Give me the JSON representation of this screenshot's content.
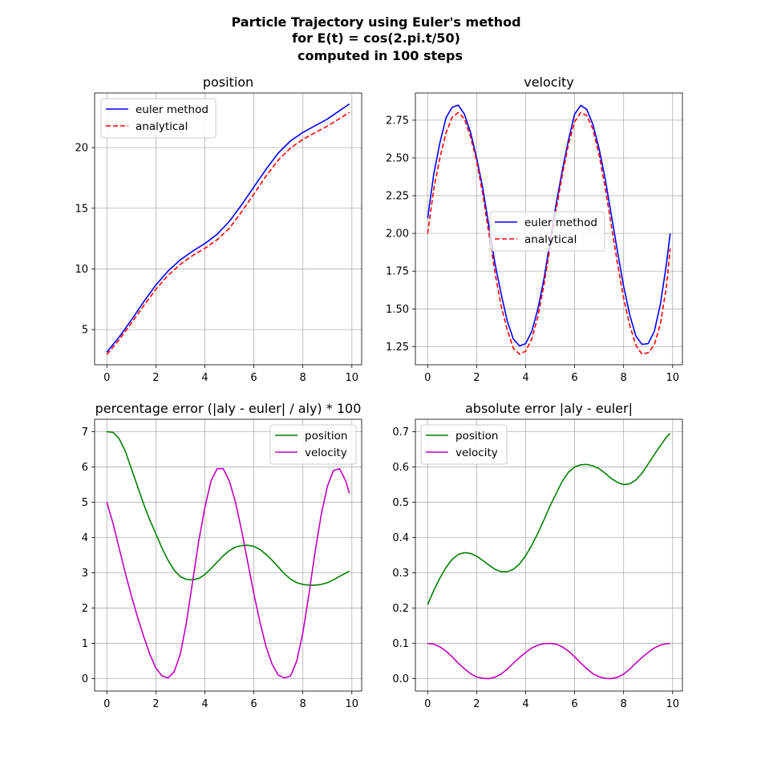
{
  "figure": {
    "title_lines": [
      "Particle Trajectory using Euler's method",
      "for E(t) = cos(2.pi.t/50)",
      "computed in 100 steps"
    ]
  },
  "chart_data": [
    {
      "type": "line",
      "title": "position",
      "xlabel": "",
      "ylabel": "",
      "xlim": [
        -0.5,
        10.4
      ],
      "ylim": [
        2.1,
        24.5
      ],
      "xticks": [
        0,
        2,
        4,
        6,
        8,
        10
      ],
      "yticks": [
        5,
        10,
        15,
        20
      ],
      "ytick_labels": [
        "5",
        "10",
        "15",
        "20"
      ],
      "grid": true,
      "legend": "upper-left",
      "x": [
        0,
        0.5,
        1,
        1.5,
        2,
        2.5,
        3,
        3.5,
        4,
        4.5,
        5,
        5.5,
        6,
        6.5,
        7,
        7.5,
        8,
        8.5,
        9,
        9.5,
        9.9
      ],
      "series": [
        {
          "name": "euler method",
          "color": "#0000ff",
          "dash": "solid",
          "values": [
            3.15,
            4.38,
            5.79,
            7.28,
            8.67,
            9.83,
            10.75,
            11.46,
            12.09,
            12.85,
            13.92,
            15.28,
            16.76,
            18.22,
            19.56,
            20.56,
            21.25,
            21.8,
            22.35,
            23.05,
            23.6
          ]
        },
        {
          "name": "analytical",
          "color": "#ff0000",
          "dash": "dashed",
          "values": [
            2.95,
            4.15,
            5.53,
            6.96,
            8.32,
            9.47,
            10.38,
            11.1,
            11.7,
            12.4,
            13.35,
            14.71,
            16.17,
            17.66,
            18.98,
            19.97,
            20.68,
            21.23,
            21.77,
            22.39,
            22.9
          ]
        }
      ]
    },
    {
      "type": "line",
      "title": "velocity",
      "xlabel": "",
      "ylabel": "",
      "xlim": [
        -0.5,
        10.4
      ],
      "ylim": [
        1.13,
        2.93
      ],
      "xticks": [
        0,
        2,
        4,
        6,
        8,
        10
      ],
      "yticks": [
        1.25,
        1.5,
        1.75,
        2.0,
        2.25,
        2.5,
        2.75
      ],
      "ytick_labels": [
        "1.25",
        "1.50",
        "1.75",
        "2.00",
        "2.25",
        "2.50",
        "2.75"
      ],
      "grid": true,
      "legend": "center-right",
      "x": [
        0,
        0.25,
        0.5,
        0.75,
        1,
        1.25,
        1.5,
        1.75,
        2,
        2.25,
        2.5,
        2.75,
        3,
        3.25,
        3.5,
        3.75,
        4,
        4.25,
        4.5,
        4.75,
        5,
        5.25,
        5.5,
        5.75,
        6,
        6.25,
        6.5,
        6.75,
        7,
        7.25,
        7.5,
        7.75,
        8,
        8.25,
        8.5,
        8.75,
        9,
        9.25,
        9.5,
        9.75,
        9.9
      ],
      "series": [
        {
          "name": "euler method",
          "color": "#0000ff",
          "dash": "solid",
          "values": [
            2.1,
            2.393,
            2.6,
            2.766,
            2.835,
            2.85,
            2.79,
            2.67,
            2.5,
            2.3,
            2.05,
            1.8,
            1.6,
            1.42,
            1.3,
            1.255,
            1.27,
            1.35,
            1.5,
            1.7,
            1.95,
            2.2,
            2.42,
            2.62,
            2.79,
            2.848,
            2.82,
            2.72,
            2.56,
            2.36,
            2.12,
            1.88,
            1.65,
            1.46,
            1.32,
            1.265,
            1.27,
            1.35,
            1.53,
            1.8,
            2.0
          ]
        },
        {
          "name": "analytical",
          "color": "#ff0000",
          "dash": "dashed",
          "values": [
            2.0,
            2.293,
            2.5,
            2.666,
            2.77,
            2.8,
            2.76,
            2.64,
            2.48,
            2.26,
            2.0,
            1.74,
            1.52,
            1.36,
            1.24,
            1.2,
            1.22,
            1.3,
            1.45,
            1.66,
            1.91,
            2.16,
            2.39,
            2.59,
            2.74,
            2.8,
            2.78,
            2.69,
            2.52,
            2.3,
            2.05,
            1.8,
            1.57,
            1.39,
            1.26,
            1.2,
            1.21,
            1.26,
            1.4,
            1.65,
            1.9
          ]
        }
      ]
    },
    {
      "type": "line",
      "title": "percentage error (|aly - euler| / aly) * 100",
      "xlabel": "",
      "ylabel": "",
      "xlim": [
        -0.5,
        10.4
      ],
      "ylim": [
        -0.35,
        7.35
      ],
      "xticks": [
        0,
        2,
        4,
        6,
        8,
        10
      ],
      "yticks": [
        0,
        1,
        2,
        3,
        4,
        5,
        6,
        7
      ],
      "ytick_labels": [
        "0",
        "1",
        "2",
        "3",
        "4",
        "5",
        "6",
        "7"
      ],
      "grid": true,
      "legend": "upper-right",
      "x": [
        0,
        0.25,
        0.5,
        0.75,
        1,
        1.25,
        1.5,
        1.75,
        2,
        2.25,
        2.5,
        2.75,
        3,
        3.25,
        3.5,
        3.75,
        4,
        4.25,
        4.5,
        4.75,
        5,
        5.25,
        5.5,
        5.75,
        6,
        6.25,
        6.5,
        6.75,
        7,
        7.25,
        7.5,
        7.75,
        8,
        8.25,
        8.5,
        8.75,
        9,
        9.25,
        9.5,
        9.75,
        9.9
      ],
      "series": [
        {
          "name": "position",
          "color": "#008000",
          "dash": "solid",
          "values": [
            7.0,
            6.98,
            6.8,
            6.45,
            5.95,
            5.45,
            4.95,
            4.5,
            4.1,
            3.7,
            3.35,
            3.07,
            2.89,
            2.81,
            2.8,
            2.84,
            2.95,
            3.12,
            3.3,
            3.48,
            3.63,
            3.73,
            3.77,
            3.78,
            3.75,
            3.66,
            3.52,
            3.35,
            3.16,
            2.97,
            2.82,
            2.72,
            2.67,
            2.65,
            2.65,
            2.67,
            2.72,
            2.8,
            2.9,
            2.99,
            3.05
          ]
        },
        {
          "name": "velocity",
          "color": "#bf00bf",
          "dash": "solid",
          "values": [
            5.0,
            4.4,
            3.7,
            3.0,
            2.35,
            1.75,
            1.2,
            0.7,
            0.3,
            0.08,
            0.02,
            0.2,
            0.7,
            1.6,
            2.75,
            3.9,
            4.85,
            5.6,
            5.95,
            5.95,
            5.6,
            5.0,
            4.2,
            3.3,
            2.4,
            1.6,
            0.9,
            0.4,
            0.1,
            0.02,
            0.08,
            0.5,
            1.3,
            2.4,
            3.6,
            4.65,
            5.45,
            5.9,
            5.95,
            5.6,
            5.25
          ]
        }
      ]
    },
    {
      "type": "line",
      "title": "absolute error |aly - euler|",
      "xlabel": "",
      "ylabel": "",
      "xlim": [
        -0.5,
        10.4
      ],
      "ylim": [
        -0.035,
        0.735
      ],
      "xticks": [
        0,
        2,
        4,
        6,
        8,
        10
      ],
      "yticks": [
        0,
        0.1,
        0.2,
        0.3,
        0.4,
        0.5,
        0.6,
        0.7
      ],
      "ytick_labels": [
        "0.0",
        "0.1",
        "0.2",
        "0.3",
        "0.4",
        "0.5",
        "0.6",
        "0.7"
      ],
      "grid": true,
      "legend": "upper-left",
      "x": [
        0,
        0.25,
        0.5,
        0.75,
        1,
        1.25,
        1.5,
        1.75,
        2,
        2.25,
        2.5,
        2.75,
        3,
        3.25,
        3.5,
        3.75,
        4,
        4.25,
        4.5,
        4.75,
        5,
        5.25,
        5.5,
        5.75,
        6,
        6.25,
        6.5,
        6.75,
        7,
        7.25,
        7.5,
        7.75,
        8,
        8.25,
        8.5,
        8.75,
        9,
        9.25,
        9.5,
        9.75,
        9.9
      ],
      "series": [
        {
          "name": "position",
          "color": "#008000",
          "dash": "solid",
          "values": [
            0.21,
            0.25,
            0.285,
            0.315,
            0.338,
            0.352,
            0.357,
            0.355,
            0.347,
            0.335,
            0.322,
            0.31,
            0.303,
            0.303,
            0.31,
            0.325,
            0.348,
            0.378,
            0.412,
            0.45,
            0.49,
            0.525,
            0.56,
            0.585,
            0.6,
            0.606,
            0.607,
            0.603,
            0.595,
            0.582,
            0.567,
            0.556,
            0.55,
            0.552,
            0.563,
            0.582,
            0.608,
            0.635,
            0.66,
            0.685,
            0.695
          ]
        },
        {
          "name": "velocity",
          "color": "#bf00bf",
          "dash": "solid",
          "values": [
            0.1,
            0.098,
            0.09,
            0.078,
            0.062,
            0.044,
            0.028,
            0.014,
            0.005,
            0.001,
            0.0,
            0.004,
            0.013,
            0.027,
            0.044,
            0.06,
            0.074,
            0.087,
            0.095,
            0.099,
            0.1,
            0.098,
            0.09,
            0.078,
            0.062,
            0.044,
            0.028,
            0.014,
            0.005,
            0.001,
            0.0,
            0.004,
            0.013,
            0.027,
            0.044,
            0.06,
            0.074,
            0.087,
            0.095,
            0.099,
            0.1
          ]
        }
      ]
    }
  ]
}
